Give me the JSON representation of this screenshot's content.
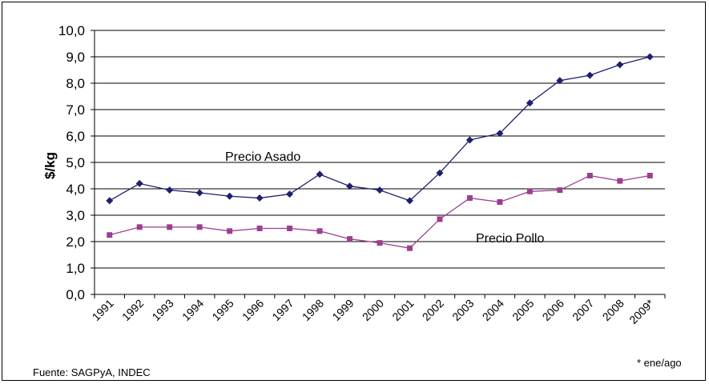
{
  "chart_data": {
    "type": "line",
    "categories": [
      "1991",
      "1992",
      "1993",
      "1994",
      "1995",
      "1996",
      "1997",
      "1998",
      "1999",
      "2000",
      "2001",
      "2002",
      "2003",
      "2004",
      "2005",
      "2006",
      "2007",
      "2008",
      "2009*"
    ],
    "series": [
      {
        "name": "Precio Asado",
        "color": "#1f1f6e",
        "marker": "diamond",
        "values": [
          3.55,
          4.2,
          3.95,
          3.85,
          3.72,
          3.65,
          3.8,
          4.55,
          4.1,
          3.95,
          3.55,
          4.6,
          5.85,
          6.1,
          7.25,
          8.1,
          8.3,
          8.7,
          9.0
        ]
      },
      {
        "name": "Precio Pollo",
        "color": "#9b3f8f",
        "marker": "square",
        "values": [
          2.25,
          2.55,
          2.55,
          2.55,
          2.4,
          2.5,
          2.5,
          2.4,
          2.1,
          1.95,
          1.75,
          2.85,
          3.65,
          3.5,
          3.9,
          3.95,
          4.5,
          4.3,
          4.5
        ]
      }
    ],
    "ylabel": "$/kg",
    "ylim": [
      0,
      10
    ],
    "ytick_step": 1,
    "ytick_labels": [
      "0,0",
      "1,0",
      "2,0",
      "3,0",
      "4,0",
      "5,0",
      "6,0",
      "7,0",
      "8,0",
      "9,0",
      "10,0"
    ],
    "grid": true,
    "annotations": [
      "Precio Asado",
      "Precio Pollo"
    ]
  },
  "footer": {
    "source": "Fuente: SAGPyA, INDEC",
    "note": "* ene/ago"
  }
}
